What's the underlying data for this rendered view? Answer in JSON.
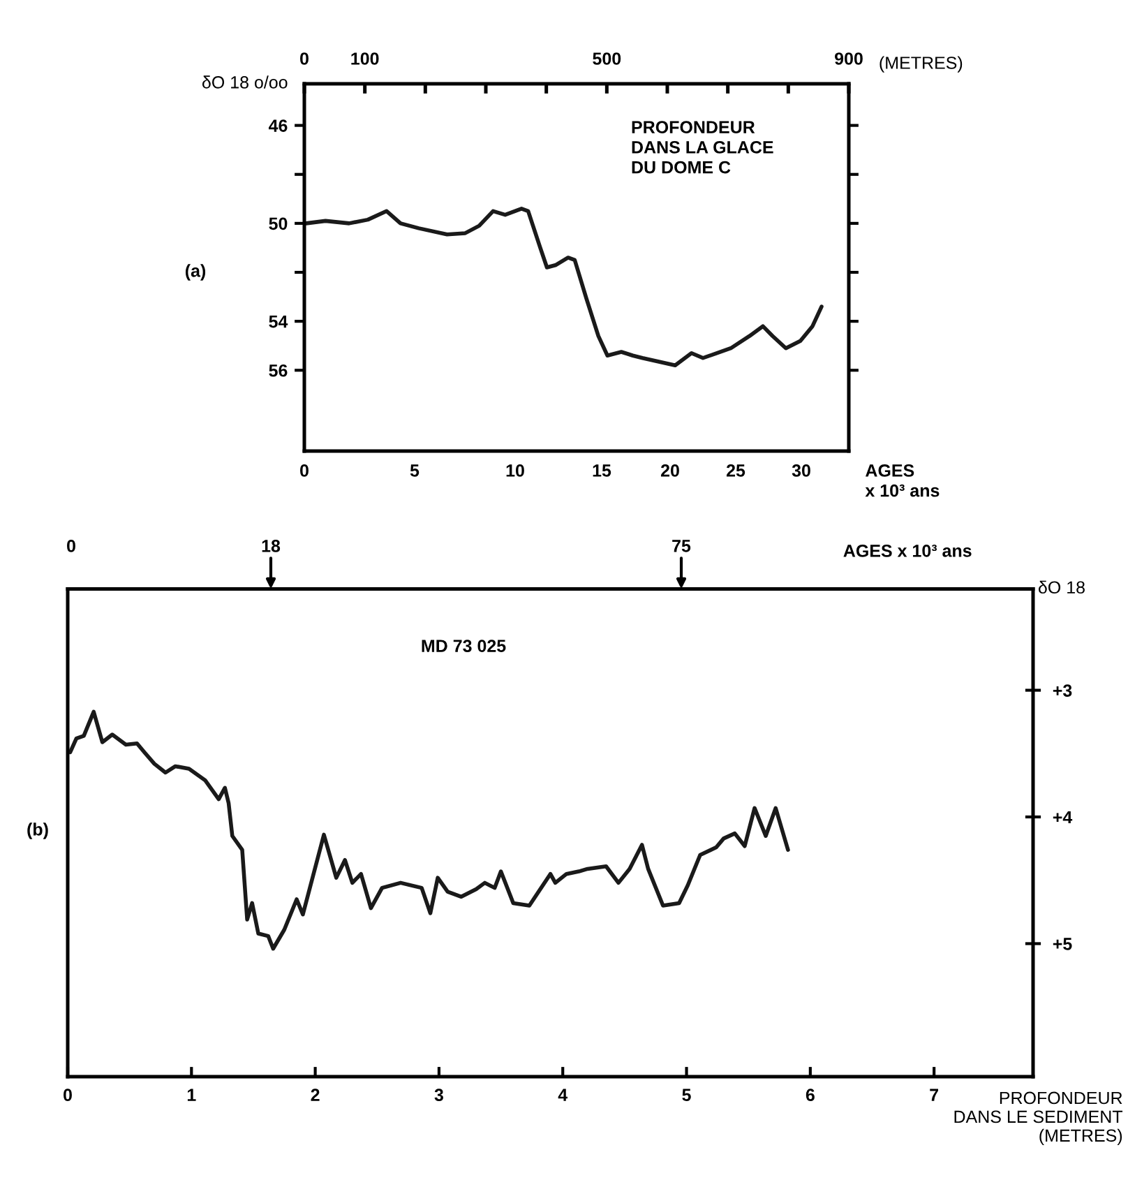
{
  "chart_data": [
    {
      "type": "line",
      "ylabel": "δO 18 o/oo",
      "xlabel": "(METRES)",
      "annotations": [
        "PROFONDEUR\nDANS LA GLACE\nDU DOME C",
        "(a)",
        "AGES\nx 10³ ans",
        "0",
        "5",
        "10",
        "15",
        "20",
        "25",
        "30"
      ],
      "xlim": [
        0,
        900
      ],
      "xticks": [
        {
          "value": 0,
          "label": "0"
        },
        100,
        {
          "value": 200,
          "label": null
        },
        {
          "value": 300,
          "label": null
        },
        {
          "value": 400,
          "label": null
        },
        500,
        {
          "value": 600,
          "label": null
        },
        {
          "value": 700,
          "label": null
        },
        {
          "value": 800,
          "label": null
        },
        900
      ],
      "ylim": [
        59.3,
        44.3
      ],
      "yticks": [
        46,
        {
          "value": 48,
          "label": null
        },
        50,
        {
          "value": 52,
          "label": null
        },
        54,
        56
      ],
      "series": [
        {
          "color": "#1a1a1a",
          "x": [
            3,
            35,
            74,
            105,
            136,
            159,
            189,
            236,
            266,
            289,
            312,
            332,
            359,
            370,
            390,
            401,
            416,
            436,
            447,
            466,
            486,
            501,
            524,
            543,
            559,
            613,
            640,
            659,
            705,
            736,
            758,
            774,
            796,
            820,
            840,
            855
          ],
          "values": [
            50.0,
            49.9,
            50.0,
            49.85,
            49.5,
            50.0,
            50.2,
            50.45,
            50.4,
            50.1,
            49.5,
            49.65,
            49.4,
            49.5,
            51.0,
            51.8,
            51.7,
            51.4,
            51.5,
            53.05,
            54.6,
            55.4,
            55.25,
            55.4,
            55.5,
            55.8,
            55.3,
            55.5,
            55.1,
            54.6,
            54.2,
            54.6,
            55.1,
            54.8,
            54.2,
            53.4
          ]
        }
      ]
    },
    {
      "type": "line",
      "ylabel": "δO 18",
      "xlabel": "PROFONDEUR\nDANS LE SEDIMENT\n(METRES)",
      "annotations": [
        "MD 73 025",
        "(b)",
        "AGES x 10³ ans",
        "0",
        "18",
        "75"
      ],
      "xlim": [
        0,
        7.8
      ],
      "xticks": [
        0,
        1,
        2,
        3,
        4,
        5,
        6,
        7
      ],
      "ylim": [
        6.05,
        2.2
      ],
      "yticks": [
        {
          "value": 3,
          "label": "+3"
        },
        {
          "value": 4,
          "label": "+4"
        },
        {
          "value": 5,
          "label": "+5"
        }
      ],
      "series": [
        {
          "color": "#1a1a1a",
          "x": [
            0.02,
            0.07,
            0.13,
            0.21,
            0.28,
            0.36,
            0.47,
            0.56,
            0.62,
            0.7,
            0.79,
            0.87,
            0.98,
            1.11,
            1.22,
            1.27,
            1.3,
            1.33,
            1.41,
            1.45,
            1.49,
            1.54,
            1.62,
            1.66,
            1.75,
            1.85,
            1.9,
            2.07,
            2.17,
            2.24,
            2.3,
            2.37,
            2.45,
            2.54,
            2.69,
            2.86,
            2.93,
            2.99,
            3.07,
            3.18,
            3.3,
            3.37,
            3.45,
            3.5,
            3.6,
            3.73,
            3.9,
            3.94,
            4.03,
            4.13,
            4.2,
            4.35,
            4.45,
            4.54,
            4.64,
            4.69,
            4.81,
            4.94,
            5.01,
            5.11,
            5.24,
            5.3,
            5.39,
            5.47,
            5.55,
            5.64,
            5.72,
            5.82
          ],
          "values": [
            3.49,
            3.38,
            3.36,
            3.17,
            3.41,
            3.35,
            3.43,
            3.42,
            3.49,
            3.58,
            3.65,
            3.6,
            3.62,
            3.71,
            3.86,
            3.77,
            3.89,
            4.15,
            4.26,
            4.81,
            4.68,
            4.92,
            4.94,
            5.04,
            4.89,
            4.65,
            4.77,
            4.14,
            4.48,
            4.34,
            4.52,
            4.45,
            4.72,
            4.56,
            4.52,
            4.56,
            4.76,
            4.48,
            4.59,
            4.63,
            4.57,
            4.52,
            4.56,
            4.43,
            4.68,
            4.7,
            4.45,
            4.52,
            4.45,
            4.43,
            4.41,
            4.39,
            4.52,
            4.41,
            4.22,
            4.41,
            4.7,
            4.68,
            4.54,
            4.3,
            4.24,
            4.17,
            4.13,
            4.23,
            3.93,
            4.15,
            3.93,
            4.26
          ]
        }
      ]
    }
  ]
}
